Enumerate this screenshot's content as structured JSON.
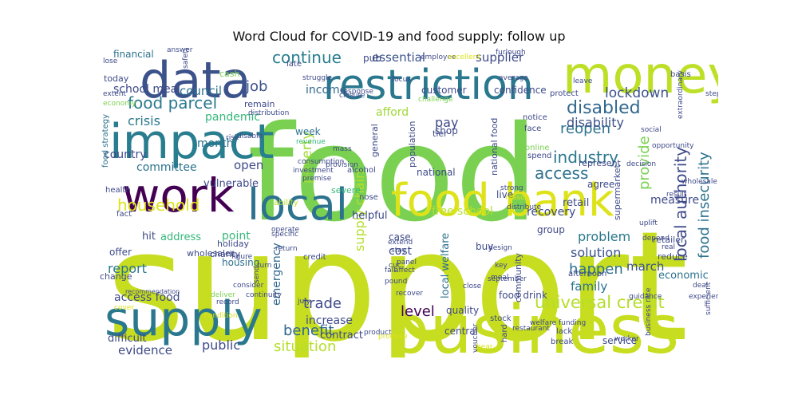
{
  "chart_data": {
    "type": "wordcloud",
    "title": "Word Cloud for COVID-19 and food supply: follow up",
    "colormap": "viridis",
    "words": [
      {
        "text": "support",
        "weight": 1.0,
        "color": "#c7dd20"
      },
      {
        "text": "food",
        "weight": 0.9,
        "color": "#7ad151"
      },
      {
        "text": "business",
        "weight": 0.52,
        "color": "#c7dd20"
      },
      {
        "text": "money",
        "weight": 0.42,
        "color": "#bddf26"
      },
      {
        "text": "data",
        "weight": 0.38,
        "color": "#3b528b"
      },
      {
        "text": "impact",
        "weight": 0.38,
        "color": "#287d8e"
      },
      {
        "text": "supply",
        "weight": 0.37,
        "color": "#2a788e"
      },
      {
        "text": "local",
        "weight": 0.36,
        "color": "#2c728e"
      },
      {
        "text": "food bank",
        "weight": 0.36,
        "color": "#dde318"
      },
      {
        "text": "work",
        "weight": 0.35,
        "color": "#440154"
      },
      {
        "text": "restriction",
        "weight": 0.3,
        "color": "#2a788e"
      },
      {
        "text": "universal credit",
        "weight": 0.13,
        "color": "#b5de2b"
      },
      {
        "text": "food parcel",
        "weight": 0.12,
        "color": "#2a788e"
      },
      {
        "text": "disabled",
        "weight": 0.12,
        "color": "#31688e"
      },
      {
        "text": "local authority",
        "weight": 0.12,
        "color": "#3e4a89"
      },
      {
        "text": "food insecurity",
        "weight": 0.12,
        "color": "#2c728e"
      },
      {
        "text": "household",
        "weight": 0.11,
        "color": "#dde318"
      },
      {
        "text": "industry",
        "weight": 0.11,
        "color": "#2a788e"
      },
      {
        "text": "access",
        "weight": 0.11,
        "color": "#2d708e"
      },
      {
        "text": "continue",
        "weight": 0.1,
        "color": "#287d8e"
      },
      {
        "text": "lockdown",
        "weight": 0.1,
        "color": "#3b528b"
      },
      {
        "text": "reopen",
        "weight": 0.1,
        "color": "#2c728e"
      },
      {
        "text": "provide",
        "weight": 0.1,
        "color": "#7ad151"
      },
      {
        "text": "benefit",
        "weight": 0.1,
        "color": "#31688e"
      },
      {
        "text": "situation",
        "weight": 0.1,
        "color": "#b5de2b"
      },
      {
        "text": "level",
        "weight": 0.1,
        "color": "#440154"
      },
      {
        "text": "trade",
        "weight": 0.09,
        "color": "#3e4a89"
      },
      {
        "text": "happen",
        "weight": 0.09,
        "color": "#2c728e"
      },
      {
        "text": "job",
        "weight": 0.09,
        "color": "#3b528b"
      },
      {
        "text": "crisis",
        "weight": 0.08,
        "color": "#2a788e"
      },
      {
        "text": "disability",
        "weight": 0.08,
        "color": "#3b528b"
      },
      {
        "text": "public",
        "weight": 0.08,
        "color": "#3e4a89"
      },
      {
        "text": "poverty",
        "weight": 0.08,
        "color": "#a0da39"
      },
      {
        "text": "problem",
        "weight": 0.08,
        "color": "#2a788e"
      },
      {
        "text": "solution",
        "weight": 0.08,
        "color": "#3b528b"
      },
      {
        "text": "supply chain",
        "weight": 0.08,
        "color": "#b5de2b"
      },
      {
        "text": "report",
        "weight": 0.07,
        "color": "#2a788e"
      },
      {
        "text": "evidence",
        "weight": 0.07,
        "color": "#3e4a89"
      },
      {
        "text": "family",
        "weight": 0.07,
        "color": "#2c728e"
      },
      {
        "text": "march",
        "weight": 0.07,
        "color": "#3b528b"
      },
      {
        "text": "pay",
        "weight": 0.07,
        "color": "#3e4a89"
      },
      {
        "text": "council",
        "weight": 0.07,
        "color": "#2c728e"
      },
      {
        "text": "pandemic",
        "weight": 0.07,
        "color": "#35b779"
      },
      {
        "text": "essential",
        "weight": 0.07,
        "color": "#3b528b"
      },
      {
        "text": "supplier",
        "weight": 0.07,
        "color": "#3e4a89"
      },
      {
        "text": "open",
        "weight": 0.07,
        "color": "#3e4a89"
      },
      {
        "text": "measure",
        "weight": 0.06,
        "color": "#3e4a89"
      },
      {
        "text": "increase",
        "weight": 0.06,
        "color": "#3e4a89"
      },
      {
        "text": "access food",
        "weight": 0.06,
        "color": "#3e4a89"
      },
      {
        "text": "emergency",
        "weight": 0.06,
        "color": "#31688e"
      },
      {
        "text": "school meal",
        "weight": 0.06,
        "color": "#3e4a89"
      },
      {
        "text": "income",
        "weight": 0.06,
        "color": "#31688e"
      },
      {
        "text": "month",
        "weight": 0.06,
        "color": "#2c728e"
      },
      {
        "text": "country",
        "weight": 0.06,
        "color": "#3e4a89"
      },
      {
        "text": "committee",
        "weight": 0.06,
        "color": "#2c728e"
      },
      {
        "text": "cost",
        "weight": 0.06,
        "color": "#3e4a89"
      },
      {
        "text": "vulnerable",
        "weight": 0.05,
        "color": "#3e4a89"
      },
      {
        "text": "difficult",
        "weight": 0.05,
        "color": "#3e4a89"
      },
      {
        "text": "recovery",
        "weight": 0.05,
        "color": "#3e4a89"
      },
      {
        "text": "retail",
        "weight": 0.05,
        "color": "#3e4a89"
      },
      {
        "text": "free school",
        "weight": 0.05,
        "color": "#b5de2b"
      },
      {
        "text": "afford",
        "weight": 0.05,
        "color": "#a0da39"
      },
      {
        "text": "helpful",
        "weight": 0.05,
        "color": "#3e4a89"
      },
      {
        "text": "economic",
        "weight": 0.05,
        "color": "#2c728e"
      },
      {
        "text": "point",
        "weight": 0.05,
        "color": "#35b779"
      },
      {
        "text": "local welfare",
        "weight": 0.05,
        "color": "#2c728e"
      },
      {
        "text": "hit",
        "weight": 0.05,
        "color": "#3e4a89"
      },
      {
        "text": "contract",
        "weight": 0.05,
        "color": "#3e4a89"
      },
      {
        "text": "address",
        "weight": 0.05,
        "color": "#35b779"
      },
      {
        "text": "customer",
        "weight": 0.05,
        "color": "#3e4a89"
      },
      {
        "text": "week",
        "weight": 0.05,
        "color": "#2c728e"
      },
      {
        "text": "confidence",
        "weight": 0.05,
        "color": "#3e4a89"
      },
      {
        "text": "housing",
        "weight": 0.05,
        "color": "#2c728e"
      },
      {
        "text": "financial",
        "weight": 0.05,
        "color": "#2c728e"
      },
      {
        "text": "national",
        "weight": 0.05,
        "color": "#3e4a89"
      },
      {
        "text": "case",
        "weight": 0.05,
        "color": "#3e4a89"
      },
      {
        "text": "food drink",
        "weight": 0.05,
        "color": "#3e4a89"
      },
      {
        "text": "today",
        "weight": 0.05,
        "color": "#3e4a89"
      },
      {
        "text": "pub",
        "weight": 0.05,
        "color": "#3e4a89"
      },
      {
        "text": "shop",
        "weight": 0.05,
        "color": "#3e4a89"
      },
      {
        "text": "service",
        "weight": 0.05,
        "color": "#3e4a89"
      },
      {
        "text": "buy",
        "weight": 0.05,
        "color": "#3e4a89"
      },
      {
        "text": "live",
        "weight": 0.05,
        "color": "#3e4a89"
      },
      {
        "text": "group",
        "weight": 0.05,
        "color": "#3e4a89"
      },
      {
        "text": "agree",
        "weight": 0.05,
        "color": "#3e4a89"
      },
      {
        "text": "cash",
        "weight": 0.04,
        "color": "#7ad151"
      },
      {
        "text": "severe",
        "weight": 0.04,
        "color": "#35b779"
      },
      {
        "text": "offer",
        "weight": 0.04,
        "color": "#3e4a89"
      },
      {
        "text": "quality",
        "weight": 0.04,
        "color": "#3e4a89"
      },
      {
        "text": "central",
        "weight": 0.04,
        "color": "#3e4a89"
      },
      {
        "text": "remain",
        "weight": 0.04,
        "color": "#3e4a89"
      },
      {
        "text": "retailer",
        "weight": 0.04,
        "color": "#3e4a89"
      },
      {
        "text": "reduce",
        "weight": 0.04,
        "color": "#3e4a89"
      },
      {
        "text": "represent",
        "weight": 0.04,
        "color": "#3e4a89"
      },
      {
        "text": "holiday",
        "weight": 0.04,
        "color": "#3e4a89"
      },
      {
        "text": "charity",
        "weight": 0.04,
        "color": "#3e4a89"
      },
      {
        "text": "wholesaler",
        "weight": 0.04,
        "color": "#3e4a89"
      },
      {
        "text": "change",
        "weight": 0.04,
        "color": "#3e4a89"
      },
      {
        "text": "tier",
        "weight": 0.04,
        "color": "#3e4a89"
      },
      {
        "text": "population",
        "weight": 0.04,
        "color": "#3e4a89"
      },
      {
        "text": "general",
        "weight": 0.04,
        "color": "#3e4a89"
      },
      {
        "text": "community",
        "weight": 0.04,
        "color": "#3e4a89"
      },
      {
        "text": "national food",
        "weight": 0.04,
        "color": "#3e4a89"
      },
      {
        "text": "supermarket",
        "weight": 0.04,
        "color": "#3e4a89"
      },
      {
        "text": "food strategy",
        "weight": 0.04,
        "color": "#2c728e"
      },
      {
        "text": "late",
        "weight": 0.04,
        "color": "#3e4a89"
      },
      {
        "text": "afternoon",
        "weight": 0.04,
        "color": "#3e4a89"
      },
      {
        "text": "notice",
        "weight": 0.04,
        "color": "#3e4a89"
      },
      {
        "text": "face",
        "weight": 0.04,
        "color": "#3e4a89"
      },
      {
        "text": "protect",
        "weight": 0.04,
        "color": "#3e4a89"
      },
      {
        "text": "online",
        "weight": 0.04,
        "color": "#7ad151"
      },
      {
        "text": "spend",
        "weight": 0.04,
        "color": "#3e4a89"
      },
      {
        "text": "lack",
        "weight": 0.04,
        "color": "#3e4a89"
      },
      {
        "text": "break",
        "weight": 0.04,
        "color": "#3e4a89"
      },
      {
        "text": "hard",
        "weight": 0.04,
        "color": "#3e4a89"
      },
      {
        "text": "stock",
        "weight": 0.04,
        "color": "#3e4a89"
      },
      {
        "text": "health",
        "weight": 0.04,
        "color": "#3e4a89"
      },
      {
        "text": "fact",
        "weight": 0.04,
        "color": "#3e4a89"
      },
      {
        "text": "credit",
        "weight": 0.04,
        "color": "#3e4a89"
      },
      {
        "text": "ability",
        "weight": 0.04,
        "color": "#b5de2b"
      },
      {
        "text": "alcohol",
        "weight": 0.04,
        "color": "#3e4a89"
      },
      {
        "text": "nose",
        "weight": 0.03,
        "color": "#3e4a89"
      },
      {
        "text": "basis",
        "weight": 0.03,
        "color": "#3e4a89"
      },
      {
        "text": "lose",
        "weight": 0.03,
        "color": "#3e4a89"
      },
      {
        "text": "extent",
        "weight": 0.03,
        "color": "#3e4a89"
      },
      {
        "text": "economy",
        "weight": 0.03,
        "color": "#7ad151"
      },
      {
        "text": "answer",
        "weight": 0.03,
        "color": "#3e4a89"
      },
      {
        "text": "safety net",
        "weight": 0.03,
        "color": "#3e4a89"
      },
      {
        "text": "struggle",
        "weight": 0.03,
        "color": "#3e4a89"
      },
      {
        "text": "distribution",
        "weight": 0.03,
        "color": "#3e4a89"
      },
      {
        "text": "revenue",
        "weight": 0.03,
        "color": "#35b779"
      },
      {
        "text": "disable",
        "weight": 0.03,
        "color": "#3e4a89"
      },
      {
        "text": "risk",
        "weight": 0.03,
        "color": "#3e4a89"
      },
      {
        "text": "focus",
        "weight": 0.03,
        "color": "#3e4a89"
      },
      {
        "text": "employee",
        "weight": 0.03,
        "color": "#3e4a89"
      },
      {
        "text": "excellent",
        "weight": 0.03,
        "color": "#dde318"
      },
      {
        "text": "furlough",
        "weight": 0.03,
        "color": "#3e4a89"
      },
      {
        "text": "average",
        "weight": 0.03,
        "color": "#3e4a89"
      },
      {
        "text": "closure",
        "weight": 0.03,
        "color": "#3e4a89"
      },
      {
        "text": "challenge",
        "weight": 0.03,
        "color": "#7ad151"
      },
      {
        "text": "response",
        "weight": 0.03,
        "color": "#3e4a89"
      },
      {
        "text": "leave",
        "weight": 0.03,
        "color": "#3e4a89"
      },
      {
        "text": "extraordinary",
        "weight": 0.03,
        "color": "#3e4a89"
      },
      {
        "text": "step",
        "weight": 0.03,
        "color": "#3e4a89"
      },
      {
        "text": "social",
        "weight": 0.03,
        "color": "#3e4a89"
      },
      {
        "text": "opportunity",
        "weight": 0.03,
        "color": "#3e4a89"
      },
      {
        "text": "decision",
        "weight": 0.03,
        "color": "#3e4a89"
      },
      {
        "text": "strong",
        "weight": 0.03,
        "color": "#3e4a89"
      },
      {
        "text": "wholesale",
        "weight": 0.03,
        "color": "#3e4a89"
      },
      {
        "text": "result",
        "weight": 0.03,
        "color": "#3e4a89"
      },
      {
        "text": "reason",
        "weight": 0.03,
        "color": "#dde318"
      },
      {
        "text": "distribute",
        "weight": 0.03,
        "color": "#3e4a89"
      },
      {
        "text": "uplift",
        "weight": 0.03,
        "color": "#3e4a89"
      },
      {
        "text": "depend",
        "weight": 0.03,
        "color": "#3e4a89"
      },
      {
        "text": "real",
        "weight": 0.03,
        "color": "#3e4a89"
      },
      {
        "text": "deal",
        "weight": 0.03,
        "color": "#3e4a89"
      },
      {
        "text": "experience",
        "weight": 0.03,
        "color": "#3e4a89"
      },
      {
        "text": "guidance",
        "weight": 0.03,
        "color": "#3e4a89"
      },
      {
        "text": "business rate",
        "weight": 0.03,
        "color": "#3e4a89"
      },
      {
        "text": "sufficient",
        "weight": 0.03,
        "color": "#3e4a89"
      },
      {
        "text": "worker",
        "weight": 0.03,
        "color": "#3e4a89"
      },
      {
        "text": "voucher",
        "weight": 0.03,
        "color": "#3e4a89"
      },
      {
        "text": "hear",
        "weight": 0.03,
        "color": "#dde318"
      },
      {
        "text": "restaurant",
        "weight": 0.03,
        "color": "#3e4a89"
      },
      {
        "text": "welfare funding",
        "weight": 0.03,
        "color": "#3e4a89"
      },
      {
        "text": "september",
        "weight": 0.03,
        "color": "#3e4a89"
      },
      {
        "text": "design",
        "weight": 0.03,
        "color": "#3e4a89"
      },
      {
        "text": "key",
        "weight": 0.03,
        "color": "#3e4a89"
      },
      {
        "text": "meal",
        "weight": 0.03,
        "color": "#3e4a89"
      },
      {
        "text": "close",
        "weight": 0.03,
        "color": "#3e4a89"
      },
      {
        "text": "extend",
        "weight": 0.03,
        "color": "#3e4a89"
      },
      {
        "text": "cut",
        "weight": 0.03,
        "color": "#3e4a89"
      },
      {
        "text": "recover",
        "weight": 0.03,
        "color": "#3e4a89"
      },
      {
        "text": "product",
        "weight": 0.03,
        "color": "#3e4a89"
      },
      {
        "text": "produce",
        "weight": 0.03,
        "color": "#dde318"
      },
      {
        "text": "stay",
        "weight": 0.03,
        "color": "#3e4a89"
      },
      {
        "text": "affect",
        "weight": 0.03,
        "color": "#3e4a89"
      },
      {
        "text": "panel",
        "weight": 0.03,
        "color": "#3e4a89"
      },
      {
        "text": "july",
        "weight": 0.03,
        "color": "#3e4a89"
      },
      {
        "text": "operate",
        "weight": 0.03,
        "color": "#3e4a89"
      },
      {
        "text": "specific",
        "weight": 0.03,
        "color": "#3e4a89"
      },
      {
        "text": "fall",
        "weight": 0.03,
        "color": "#3e4a89"
      },
      {
        "text": "pound",
        "weight": 0.03,
        "color": "#3e4a89"
      },
      {
        "text": "consumption",
        "weight": 0.03,
        "color": "#3e4a89"
      },
      {
        "text": "investment",
        "weight": 0.03,
        "color": "#3e4a89"
      },
      {
        "text": "provision",
        "weight": 0.03,
        "color": "#3e4a89"
      },
      {
        "text": "mass",
        "weight": 0.03,
        "color": "#3e4a89"
      },
      {
        "text": "premise",
        "weight": 0.03,
        "color": "#3e4a89"
      },
      {
        "text": "figure",
        "weight": 0.03,
        "color": "#3e4a89"
      },
      {
        "text": "turn",
        "weight": 0.03,
        "color": "#3e4a89"
      },
      {
        "text": "return",
        "weight": 0.03,
        "color": "#3e4a89"
      },
      {
        "text": "send",
        "weight": 0.03,
        "color": "#3e4a89"
      },
      {
        "text": "record",
        "weight": 0.03,
        "color": "#3e4a89"
      },
      {
        "text": "condition",
        "weight": 0.03,
        "color": "#dde318"
      },
      {
        "text": "deliver",
        "weight": 0.03,
        "color": "#7ad151"
      },
      {
        "text": "recommendation",
        "weight": 0.03,
        "color": "#3e4a89"
      },
      {
        "text": "cover",
        "weight": 0.03,
        "color": "#dde318"
      },
      {
        "text": "consider",
        "weight": 0.03,
        "color": "#3e4a89"
      },
      {
        "text": "continuity",
        "weight": 0.03,
        "color": "#3e4a89"
      }
    ]
  }
}
